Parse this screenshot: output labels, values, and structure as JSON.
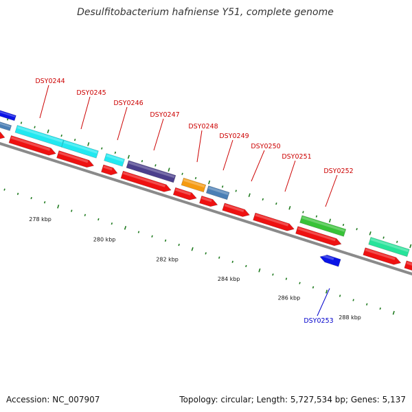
{
  "title": "Desulfitobacterium hafniense Y51, complete genome",
  "footer": {
    "accession": "Accession: NC_007907",
    "topology": "Topology: circular; Length: 5,727,534 bp; Genes: 5,137"
  },
  "colors": {
    "backbone": "#8a8a8a",
    "tick": "#1e7a1e",
    "forward_label": "#cc0000",
    "reverse_label": "#0000cc",
    "cds": "#ee1111",
    "cyan": "#22e8f0",
    "purple": "#4b3f8c",
    "orange": "#f59a10",
    "steelblue": "#4a7fb5",
    "green": "#38c238",
    "mint": "#27e39a",
    "blue": "#0a14e6"
  },
  "scale": {
    "labels": [
      "278 kbp",
      "280 kbp",
      "282 kbp",
      "284 kbp",
      "286 kbp",
      "288 kbp"
    ]
  },
  "genes": [
    {
      "label": "DSY0244",
      "strand": "forward"
    },
    {
      "label": "DSY0245",
      "strand": "forward"
    },
    {
      "label": "DSY0246",
      "strand": "forward"
    },
    {
      "label": "DSY0247",
      "strand": "forward"
    },
    {
      "label": "DSY0248",
      "strand": "forward"
    },
    {
      "label": "DSY0249",
      "strand": "forward"
    },
    {
      "label": "DSY0250",
      "strand": "forward"
    },
    {
      "label": "DSY0251",
      "strand": "forward"
    },
    {
      "label": "DSY0252",
      "strand": "forward"
    },
    {
      "label": "DSY0253",
      "strand": "reverse"
    }
  ]
}
